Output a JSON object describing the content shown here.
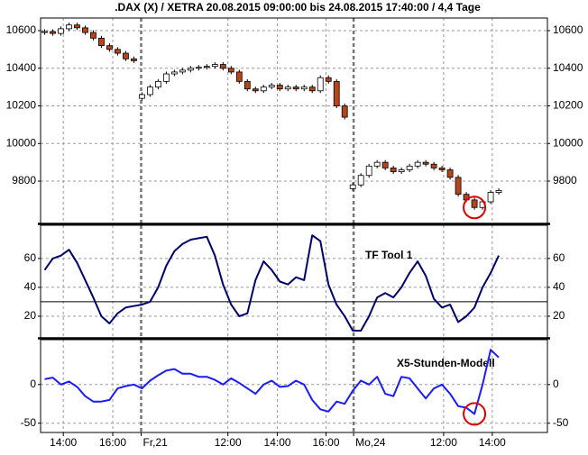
{
  "chart_data": [
    {
      "type": "candlestick",
      "title": ".DAX (X) / XETRA 20.08.2015 09:00:00 bis 24.08.2015 17:40:00 / 4,4 Tage",
      "xlim": [
        -0.5,
        62
      ],
      "xticks": [
        {
          "value": 2.3,
          "label": "14:00"
        },
        {
          "value": 8.4,
          "label": "16:00"
        },
        {
          "value": 22.6,
          "label": "12:00"
        },
        {
          "value": 28.7,
          "label": "14:00"
        },
        {
          "value": 34.7,
          "label": "16:00"
        },
        {
          "value": 49.2,
          "label": "12:00"
        },
        {
          "value": 55.2,
          "label": "14:00"
        }
      ],
      "day_breaks": [
        {
          "value": 11.9,
          "label": "Fr,21"
        },
        {
          "value": 38.1,
          "label": "Mo,24"
        }
      ],
      "ylim": [
        9575,
        10667
      ],
      "yticks": [
        9800,
        10000,
        10200,
        10400,
        10600
      ],
      "grid": true,
      "up_color": "#ffffff",
      "down_color": "#b5451b",
      "highlight_index": 53,
      "highlight_color": "#e00000",
      "open": [
        10590,
        10595,
        10585,
        10610,
        10630,
        10615,
        10590,
        10560,
        10520,
        10500,
        10480,
        10450,
        10240,
        10260,
        10300,
        10330,
        10370,
        10380,
        10390,
        10400,
        10405,
        10410,
        10420,
        10400,
        10380,
        10330,
        10290,
        10280,
        10300,
        10310,
        10290,
        10300,
        10290,
        10300,
        10280,
        10350,
        10330,
        10200,
        9760,
        9780,
        9830,
        9880,
        9900,
        9870,
        9850,
        9860,
        9880,
        9900,
        9890,
        9870,
        9860,
        9820,
        9730,
        9700,
        9660,
        9690,
        9740
      ],
      "high": [
        10607,
        10607,
        10622,
        10642,
        10642,
        10627,
        10602,
        10572,
        10532,
        10512,
        10492,
        10462,
        10272,
        10312,
        10342,
        10382,
        10392,
        10402,
        10412,
        10417,
        10422,
        10432,
        10432,
        10412,
        10392,
        10342,
        10302,
        10312,
        10322,
        10322,
        10312,
        10312,
        10312,
        10312,
        10362,
        10362,
        10342,
        10212,
        9792,
        9842,
        9892,
        9912,
        9912,
        9882,
        9872,
        9892,
        9912,
        9912,
        9902,
        9882,
        9872,
        9832,
        9742,
        9712,
        9702,
        9752,
        9762
      ],
      "low": [
        10578,
        10573,
        10573,
        10598,
        10603,
        10578,
        10548,
        10508,
        10488,
        10468,
        10438,
        10428,
        10228,
        10248,
        10288,
        10318,
        10358,
        10368,
        10378,
        10388,
        10393,
        10398,
        10388,
        10368,
        10318,
        10278,
        10268,
        10268,
        10288,
        10278,
        10278,
        10278,
        10278,
        10268,
        10268,
        10318,
        10188,
        10128,
        9748,
        9768,
        9818,
        9868,
        9858,
        9838,
        9838,
        9848,
        9868,
        9878,
        9858,
        9848,
        9808,
        9718,
        9688,
        9648,
        9648,
        9678,
        9728
      ],
      "close": [
        10595,
        10585,
        10610,
        10630,
        10615,
        10590,
        10560,
        10520,
        10500,
        10480,
        10450,
        10440,
        10260,
        10300,
        10330,
        10370,
        10380,
        10390,
        10400,
        10405,
        10410,
        10420,
        10400,
        10380,
        10330,
        10290,
        10280,
        10300,
        10310,
        10290,
        10300,
        10290,
        10300,
        10280,
        10350,
        10330,
        10200,
        10140,
        9780,
        9830,
        9880,
        9900,
        9870,
        9850,
        9860,
        9880,
        9900,
        9890,
        9870,
        9860,
        9820,
        9730,
        9700,
        9660,
        9690,
        9740,
        9750
      ]
    },
    {
      "type": "line",
      "label": "TF Tool 1",
      "color": "#00006e",
      "ylim": [
        5,
        83
      ],
      "yticks": [
        20,
        40,
        60
      ],
      "hline": 30,
      "grid": true,
      "values": [
        52,
        60,
        62,
        66,
        57,
        45,
        33,
        20,
        15,
        22,
        26,
        27,
        28,
        30,
        40,
        55,
        65,
        70,
        73,
        74,
        75,
        62,
        42,
        28,
        20,
        22,
        45,
        58,
        52,
        44,
        42,
        47,
        45,
        76,
        72,
        42,
        28,
        20,
        10,
        10,
        20,
        33,
        36,
        33,
        40,
        50,
        58,
        48,
        32,
        26,
        28,
        16,
        20,
        26,
        40,
        50,
        62
      ]
    },
    {
      "type": "line",
      "label": "X5-Stunden-Modell",
      "color": "#1a1aff",
      "ylim": [
        -62,
        58
      ],
      "yticks": [
        -50,
        0
      ],
      "grid": true,
      "highlight_index": 53,
      "highlight_color": "#e00000",
      "values": [
        7,
        9,
        0,
        4,
        -3,
        -15,
        -22,
        -22,
        -20,
        -5,
        -2,
        0,
        -5,
        5,
        12,
        18,
        20,
        14,
        14,
        10,
        10,
        6,
        0,
        8,
        2,
        -5,
        -12,
        0,
        5,
        -3,
        -2,
        5,
        0,
        -20,
        -32,
        -35,
        -22,
        -25,
        -8,
        5,
        0,
        10,
        -12,
        -15,
        10,
        8,
        -5,
        -18,
        -5,
        0,
        -12,
        -28,
        -30,
        -38,
        0,
        45,
        35
      ]
    }
  ]
}
